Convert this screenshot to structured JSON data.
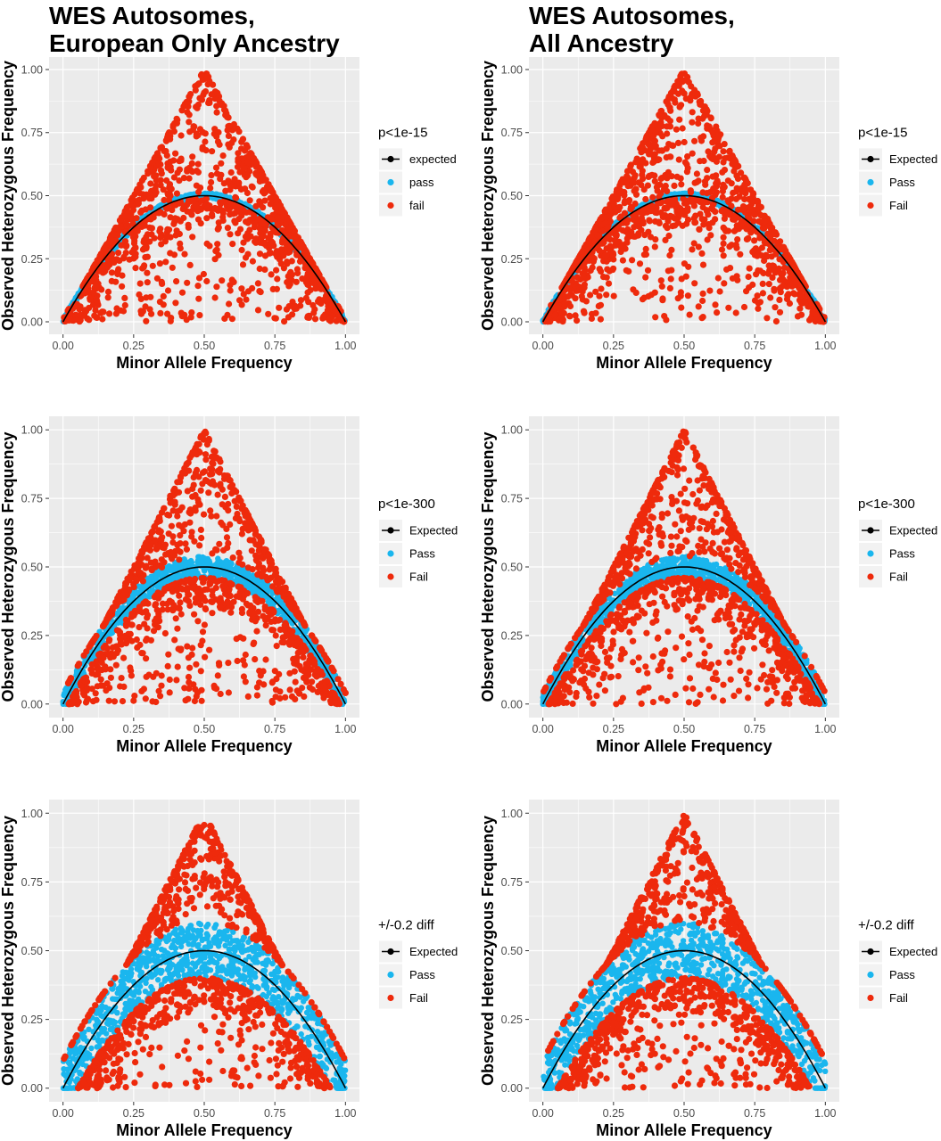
{
  "columns": [
    {
      "title_line1": "WES Autosomes,",
      "title_line2": "European Only Ancestry"
    },
    {
      "title_line1": "WES Autosomes,",
      "title_line2": "All Ancestry"
    }
  ],
  "colors": {
    "expected": "#000000",
    "pass": "#1ab6ee",
    "fail": "#ee2a0c",
    "panel_bg": "#ebebeb",
    "grid": "#ffffff"
  },
  "chart_data": [
    {
      "type": "scatter",
      "xlabel": "Minor Allele Frequency",
      "ylabel": "Observed Heterozygous Frequency",
      "xticks": [
        "0.00",
        "0.25",
        "0.50",
        "0.75",
        "1.00"
      ],
      "yticks": [
        "0.00",
        "0.25",
        "0.50",
        "0.75",
        "1.00"
      ],
      "xlim": [
        0,
        1
      ],
      "ylim": [
        0,
        1
      ],
      "grid": true,
      "legend_position": "right",
      "legend_title": "p<1e-15",
      "pass_band": 0.01,
      "series": [
        {
          "name": "expected",
          "kind": "line",
          "formula": "2x(1-x)"
        },
        {
          "name": "pass",
          "kind": "points"
        },
        {
          "name": "fail",
          "kind": "points"
        }
      ]
    },
    {
      "type": "scatter",
      "xlabel": "Minor Allele Frequency",
      "ylabel": "Observed Heterozygous Frequency",
      "xticks": [
        "0.00",
        "0.25",
        "0.50",
        "0.75",
        "1.00"
      ],
      "yticks": [
        "0.00",
        "0.25",
        "0.50",
        "0.75",
        "1.00"
      ],
      "xlim": [
        0,
        1
      ],
      "ylim": [
        0,
        1
      ],
      "grid": true,
      "legend_position": "right",
      "legend_title": "p<1e-15",
      "pass_band": 0.01,
      "series": [
        {
          "name": "Expected",
          "kind": "line",
          "formula": "2x(1-x)"
        },
        {
          "name": "Pass",
          "kind": "points"
        },
        {
          "name": "Fail",
          "kind": "points"
        }
      ]
    },
    {
      "type": "scatter",
      "xlabel": "Minor Allele Frequency",
      "ylabel": "Observed Heterozygous Frequency",
      "xticks": [
        "0.00",
        "0.25",
        "0.50",
        "0.75",
        "1.00"
      ],
      "yticks": [
        "0.00",
        "0.25",
        "0.50",
        "0.75",
        "1.00"
      ],
      "xlim": [
        0,
        1
      ],
      "ylim": [
        0,
        1
      ],
      "grid": true,
      "legend_position": "right",
      "legend_title": "p<1e-300",
      "pass_band": 0.04,
      "series": [
        {
          "name": "Expected",
          "kind": "line",
          "formula": "2x(1-x)"
        },
        {
          "name": "Pass",
          "kind": "points"
        },
        {
          "name": "Fail",
          "kind": "points"
        }
      ]
    },
    {
      "type": "scatter",
      "xlabel": "Minor Allele Frequency",
      "ylabel": "Observed Heterozygous Frequency",
      "xticks": [
        "0.00",
        "0.25",
        "0.50",
        "0.75",
        "1.00"
      ],
      "yticks": [
        "0.00",
        "0.25",
        "0.50",
        "0.75",
        "1.00"
      ],
      "xlim": [
        0,
        1
      ],
      "ylim": [
        0,
        1
      ],
      "grid": true,
      "legend_position": "right",
      "legend_title": "p<1e-300",
      "pass_band": 0.04,
      "series": [
        {
          "name": "Expected",
          "kind": "line",
          "formula": "2x(1-x)"
        },
        {
          "name": "Pass",
          "kind": "points"
        },
        {
          "name": "Fail",
          "kind": "points"
        }
      ]
    },
    {
      "type": "scatter",
      "xlabel": "Minor Allele Frequency",
      "ylabel": "Observed Heterozygous Frequency",
      "xticks": [
        "0.00",
        "0.25",
        "0.50",
        "0.75",
        "1.00"
      ],
      "yticks": [
        "0.00",
        "0.25",
        "0.50",
        "0.75",
        "1.00"
      ],
      "xlim": [
        0,
        1
      ],
      "ylim": [
        0,
        1
      ],
      "grid": true,
      "legend_position": "right",
      "legend_title": "+/-0.2 diff",
      "pass_band": 0.1,
      "series": [
        {
          "name": "Expected",
          "kind": "line",
          "formula": "2x(1-x)"
        },
        {
          "name": "Pass",
          "kind": "points"
        },
        {
          "name": "Fail",
          "kind": "points"
        }
      ]
    },
    {
      "type": "scatter",
      "xlabel": "Minor Allele Frequency",
      "ylabel": "Observed Heterozygous Frequency",
      "xticks": [
        "0.00",
        "0.25",
        "0.50",
        "0.75",
        "1.00"
      ],
      "yticks": [
        "0.00",
        "0.25",
        "0.50",
        "0.75",
        "1.00"
      ],
      "xlim": [
        0,
        1
      ],
      "ylim": [
        0,
        1
      ],
      "grid": true,
      "legend_position": "right",
      "legend_title": "+/-0.2 diff",
      "pass_band": 0.1,
      "series": [
        {
          "name": "Expected",
          "kind": "line",
          "formula": "2x(1-x)"
        },
        {
          "name": "Pass",
          "kind": "points"
        },
        {
          "name": "Fail",
          "kind": "points"
        }
      ]
    }
  ]
}
